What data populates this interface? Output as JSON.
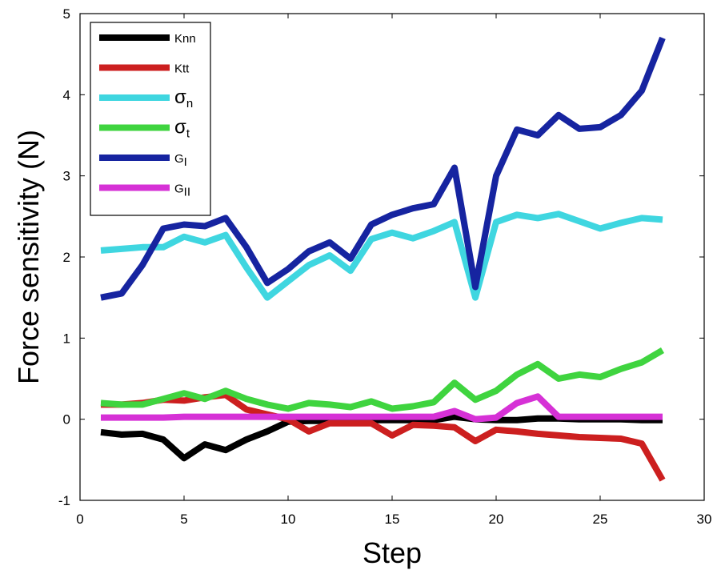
{
  "chart_data": {
    "type": "line",
    "title": "",
    "xlabel": "Step",
    "ylabel": "Force sensitivity (N)",
    "xlim": [
      0,
      30
    ],
    "ylim": [
      -1,
      5
    ],
    "xticks": [
      0,
      5,
      10,
      15,
      20,
      25,
      30
    ],
    "yticks": [
      -1,
      0,
      1,
      2,
      3,
      4,
      5
    ],
    "xtick_labels": [
      "0",
      "5",
      "10",
      "15",
      "20",
      "25",
      "30"
    ],
    "ytick_labels": [
      "-1",
      "0",
      "1",
      "2",
      "3",
      "4",
      "5"
    ],
    "grid": false,
    "legend_position": "top-left",
    "x": [
      1,
      2,
      3,
      4,
      5,
      6,
      7,
      8,
      9,
      10,
      11,
      12,
      13,
      14,
      15,
      16,
      17,
      18,
      19,
      20,
      21,
      22,
      23,
      24,
      25,
      26,
      27,
      28
    ],
    "series": [
      {
        "name": "Knn",
        "legend_main": "Knn",
        "legend_sub": "",
        "color": "#000000",
        "values": [
          -0.16,
          -0.19,
          -0.18,
          -0.25,
          -0.48,
          -0.31,
          -0.38,
          -0.25,
          -0.15,
          -0.03,
          -0.02,
          -0.02,
          -0.02,
          -0.01,
          -0.01,
          -0.01,
          -0.01,
          0.03,
          0.0,
          -0.01,
          -0.01,
          0.01,
          0.01,
          0.0,
          0.0,
          0.0,
          -0.01,
          -0.01
        ]
      },
      {
        "name": "Ktt",
        "legend_main": "Ktt",
        "legend_sub": "",
        "color": "#cc1f1f",
        "values": [
          0.18,
          0.18,
          0.2,
          0.24,
          0.23,
          0.27,
          0.3,
          0.12,
          0.06,
          0.0,
          -0.15,
          -0.05,
          -0.05,
          -0.05,
          -0.2,
          -0.07,
          -0.08,
          -0.1,
          -0.27,
          -0.13,
          -0.15,
          -0.18,
          -0.2,
          -0.22,
          -0.23,
          -0.24,
          -0.3,
          -0.75
        ]
      },
      {
        "name": "σn",
        "legend_main": "σ",
        "legend_sub": "n",
        "color": "#3fd6e0",
        "values": [
          2.08,
          2.1,
          2.12,
          2.12,
          2.25,
          2.18,
          2.27,
          1.87,
          1.5,
          1.7,
          1.9,
          2.02,
          1.83,
          2.22,
          2.3,
          2.23,
          2.32,
          2.43,
          1.5,
          2.43,
          2.52,
          2.48,
          2.53,
          2.44,
          2.35,
          2.42,
          2.48,
          2.46
        ]
      },
      {
        "name": "σt",
        "legend_main": "σ",
        "legend_sub": "t",
        "color": "#3fd43f",
        "values": [
          0.2,
          0.18,
          0.18,
          0.25,
          0.32,
          0.25,
          0.35,
          0.25,
          0.18,
          0.13,
          0.2,
          0.18,
          0.15,
          0.22,
          0.13,
          0.16,
          0.21,
          0.45,
          0.24,
          0.35,
          0.55,
          0.68,
          0.5,
          0.55,
          0.52,
          0.62,
          0.7,
          0.85
        ]
      },
      {
        "name": "GI",
        "legend_main": "G",
        "legend_sub": "I",
        "color": "#1624a0",
        "values": [
          1.5,
          1.55,
          1.9,
          2.35,
          2.4,
          2.38,
          2.48,
          2.12,
          1.68,
          1.85,
          2.07,
          2.18,
          1.98,
          2.4,
          2.52,
          2.6,
          2.65,
          3.1,
          1.63,
          3.0,
          3.57,
          3.5,
          3.75,
          3.58,
          3.6,
          3.75,
          4.05,
          4.7
        ]
      },
      {
        "name": "GII",
        "legend_main": "G",
        "legend_sub": "II",
        "color": "#d631d6",
        "values": [
          0.02,
          0.02,
          0.02,
          0.02,
          0.03,
          0.03,
          0.03,
          0.03,
          0.03,
          0.03,
          0.03,
          0.03,
          0.03,
          0.03,
          0.03,
          0.03,
          0.03,
          0.1,
          0.0,
          0.02,
          0.2,
          0.28,
          0.03,
          0.03,
          0.03,
          0.03,
          0.03,
          0.03
        ]
      }
    ]
  }
}
